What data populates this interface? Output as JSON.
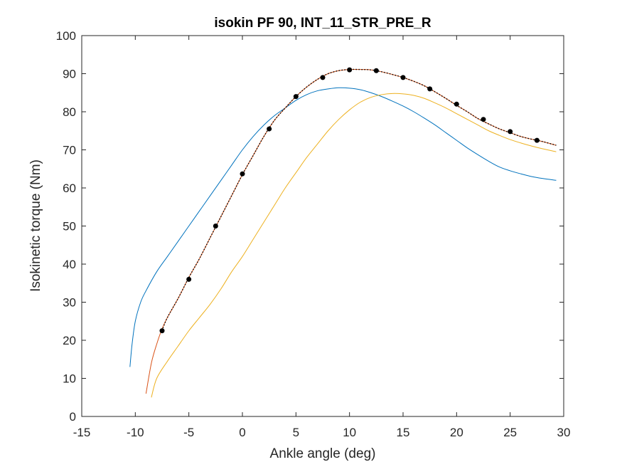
{
  "chart_data": {
    "type": "line",
    "title": "isokin PF 90, INT_11_STR_PRE_R",
    "xlabel": "Ankle angle (deg)",
    "ylabel": "Isokinetic torque (Nm)",
    "xlim": [
      -15,
      30
    ],
    "ylim": [
      0,
      100
    ],
    "xticks": [
      -15,
      -10,
      -5,
      0,
      5,
      10,
      15,
      20,
      25,
      30
    ],
    "yticks": [
      0,
      10,
      20,
      30,
      40,
      50,
      60,
      70,
      80,
      90,
      100
    ],
    "grid": false,
    "legend": "none",
    "series": [
      {
        "color": "#0072BD",
        "style": "solid",
        "x": [
          -10.5,
          -10.3,
          -10,
          -9.5,
          -9,
          -8,
          -7,
          -6,
          -5,
          -4,
          -3,
          -2,
          -1,
          0,
          1,
          2,
          3,
          4,
          5,
          6,
          7,
          8,
          9,
          10,
          11,
          12,
          13,
          14,
          15,
          16,
          17,
          18,
          19,
          20,
          21,
          22,
          23,
          24,
          25,
          26,
          27,
          28,
          29.3
        ],
        "y": [
          13,
          19,
          25,
          30,
          33,
          38,
          42,
          46,
          50,
          54,
          58,
          62,
          66,
          70,
          73.5,
          76.5,
          79,
          81,
          83,
          84.5,
          85.5,
          86,
          86.3,
          86.2,
          85.8,
          85,
          84,
          82.8,
          81.5,
          80,
          78.3,
          76.5,
          74.5,
          72.5,
          70.5,
          68.7,
          67,
          65.5,
          64.5,
          63.7,
          63,
          62.5,
          62
        ]
      },
      {
        "color": "#D95319",
        "style": "solid",
        "x": [
          -9,
          -8.5,
          -8,
          -7.5,
          -7,
          -6,
          -5,
          -4,
          -3,
          -2,
          -1,
          0,
          1,
          2,
          3,
          4,
          5,
          6,
          7,
          8,
          9,
          10,
          11,
          12,
          13,
          14,
          15,
          16,
          17,
          18,
          19,
          20,
          21,
          22,
          23,
          24,
          25,
          26,
          27,
          28,
          29.3
        ],
        "y": [
          6,
          14,
          19,
          23,
          26,
          31,
          36.5,
          41.5,
          47,
          52.5,
          58,
          63.5,
          68.5,
          73.5,
          77.8,
          81,
          84,
          86.5,
          88.5,
          90,
          90.8,
          91.1,
          91.1,
          91,
          90.5,
          89.8,
          89,
          88,
          86.8,
          85.2,
          83.5,
          81.7,
          80,
          78.2,
          76.8,
          75.5,
          74.5,
          73.5,
          72.8,
          72.2,
          71.2
        ]
      },
      {
        "color": "#EDB120",
        "style": "solid",
        "x": [
          -8.5,
          -8,
          -7,
          -6,
          -5,
          -4,
          -3,
          -2,
          -1,
          0,
          1,
          2,
          3,
          4,
          5,
          6,
          7,
          8,
          9,
          10,
          11,
          12,
          13,
          14,
          15,
          16,
          17,
          18,
          19,
          20,
          21,
          22,
          23,
          24,
          25,
          26,
          27,
          28,
          29.3
        ],
        "y": [
          5,
          10,
          14.5,
          18.5,
          22.5,
          26,
          29.5,
          33.5,
          38,
          42,
          46.5,
          51,
          55.5,
          60,
          64,
          68,
          71.5,
          75,
          78,
          80.5,
          82.5,
          83.8,
          84.5,
          84.8,
          84.7,
          84.3,
          83.5,
          82.3,
          81,
          79.5,
          78,
          76.5,
          75,
          73.8,
          72.7,
          71.8,
          71,
          70.3,
          69.5
        ]
      },
      {
        "color": "#000000",
        "style": "dotted",
        "x": [
          -7.5,
          -7,
          -6,
          -5,
          -4,
          -3,
          -2,
          -1,
          0,
          1,
          2,
          3,
          4,
          5,
          6,
          7,
          8,
          9,
          10,
          11,
          12,
          13,
          14,
          15,
          16,
          17,
          18,
          19,
          20,
          21,
          22,
          23,
          24,
          25,
          26,
          27,
          28,
          29.3
        ],
        "y": [
          22.5,
          26,
          31,
          36.5,
          41.5,
          47,
          52.5,
          58,
          63.5,
          68.5,
          73.5,
          77.8,
          81,
          84,
          86.5,
          88.5,
          90,
          90.8,
          91.1,
          91.1,
          91,
          90.5,
          89.8,
          89,
          88,
          86.8,
          85.2,
          83.5,
          81.7,
          80,
          78.2,
          76.8,
          75.5,
          74.5,
          73.5,
          72.8,
          72.2,
          71.2
        ]
      }
    ],
    "markers": {
      "color": "#000000",
      "x": [
        -7.5,
        -5,
        -2.5,
        0,
        2.5,
        5,
        7.5,
        10,
        12.5,
        15,
        17.5,
        20,
        22.5,
        25,
        27.5
      ],
      "y": [
        22.5,
        36,
        50,
        63.7,
        75.5,
        84,
        89,
        91,
        90.8,
        89,
        86,
        82,
        78,
        74.8,
        72.5
      ]
    }
  }
}
